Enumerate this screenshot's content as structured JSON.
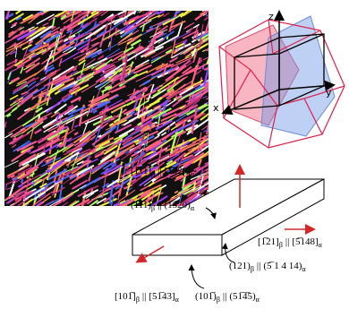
{
  "figure": {
    "axes": {
      "z": "z",
      "y": "y",
      "x": "x"
    },
    "labels": [
      {
        "left": "[1̅11]",
        "left_sub": "β",
        "separator": "||",
        "right": "[1̅320]",
        "right_sub": "α"
      },
      {
        "left": "(11̅1)",
        "left_sub": "β",
        "separator": "||",
        "right": "(13̅20)",
        "right_sub": "α"
      },
      {
        "left": "[1̅21]",
        "left_sub": "β",
        "separator": "||",
        "right": "[5̅148]",
        "right_sub": "α"
      },
      {
        "left": "(121)",
        "left_sub": "β",
        "separator": "||",
        "right": "(5̅ 1 4 14)",
        "right_sub": "α"
      },
      {
        "left": "[101̅]",
        "left_sub": "β",
        "separator": "||",
        "right": "[51̅43]",
        "right_sub": "α"
      },
      {
        "left": "(101̅)",
        "left_sub": "β",
        "separator": "||",
        "right": "(51̅4̅5)",
        "right_sub": "α"
      }
    ]
  }
}
